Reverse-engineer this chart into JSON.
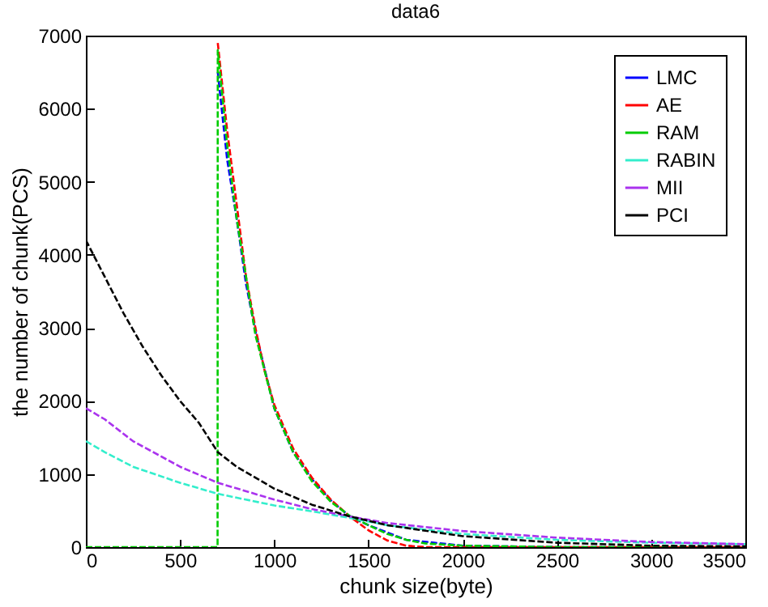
{
  "chart_data": {
    "type": "line",
    "title": "data6",
    "xlabel": "chunk size(byte)",
    "ylabel": "the number of chunk(PCS)",
    "xlim": [
      0,
      3500
    ],
    "xticks": [
      0,
      500,
      1000,
      1500,
      2000,
      2500,
      3000,
      3500
    ],
    "ylim": [
      0,
      7000
    ],
    "yticks": [
      0,
      1000,
      2000,
      3000,
      4000,
      5000,
      6000,
      7000
    ],
    "legend": "top right",
    "line_style": "dashed",
    "series": [
      {
        "name": "LMC",
        "color": "#0000ff",
        "x": [
          700,
          750,
          800,
          850,
          900,
          1000,
          1100,
          1200,
          1300,
          1400,
          1500,
          1700,
          2000,
          2500,
          3500
        ],
        "values": [
          6500,
          5300,
          4500,
          3600,
          2950,
          1900,
          1300,
          930,
          640,
          420,
          300,
          100,
          20,
          0,
          0
        ]
      },
      {
        "name": "AE",
        "color": "#ff0000",
        "x": [
          700,
          750,
          800,
          850,
          900,
          950,
          1000,
          1100,
          1200,
          1300,
          1400,
          1500,
          1600,
          1700,
          1800,
          3500
        ],
        "values": [
          6900,
          5700,
          4700,
          3700,
          3000,
          2400,
          1950,
          1350,
          950,
          650,
          420,
          230,
          90,
          20,
          0,
          0
        ]
      },
      {
        "name": "RAM",
        "color": "#00cc00",
        "x": [
          0,
          699,
          700,
          750,
          800,
          900,
          1000,
          1100,
          1200,
          1300,
          1400,
          1500,
          1600,
          1700,
          1800,
          2000,
          2500,
          3500
        ],
        "values": [
          0,
          0,
          6800,
          5500,
          4500,
          2900,
          1900,
          1300,
          900,
          620,
          430,
          300,
          180,
          100,
          50,
          20,
          0,
          0
        ]
      },
      {
        "name": "RABIN",
        "color": "#33eecc",
        "x": [
          0,
          100,
          250,
          500,
          700,
          1000,
          1200,
          1400,
          1600,
          2000,
          2500,
          3000,
          3500
        ],
        "values": [
          1450,
          1300,
          1100,
          880,
          730,
          570,
          490,
          400,
          300,
          180,
          100,
          60,
          40
        ]
      },
      {
        "name": "MII",
        "color": "#aa33ee",
        "x": [
          0,
          100,
          250,
          500,
          700,
          1000,
          1200,
          1400,
          1600,
          2000,
          2500,
          3000,
          3500
        ],
        "values": [
          1900,
          1750,
          1450,
          1100,
          880,
          650,
          520,
          420,
          330,
          220,
          130,
          70,
          40
        ]
      },
      {
        "name": "PCI",
        "color": "#000000",
        "x": [
          0,
          100,
          200,
          300,
          400,
          500,
          600,
          700,
          800,
          1000,
          1200,
          1400,
          1600,
          2000,
          2500,
          3000,
          3500
        ],
        "values": [
          4200,
          3700,
          3200,
          2750,
          2350,
          2000,
          1700,
          1300,
          1100,
          800,
          580,
          420,
          300,
          150,
          60,
          20,
          10
        ]
      }
    ]
  }
}
